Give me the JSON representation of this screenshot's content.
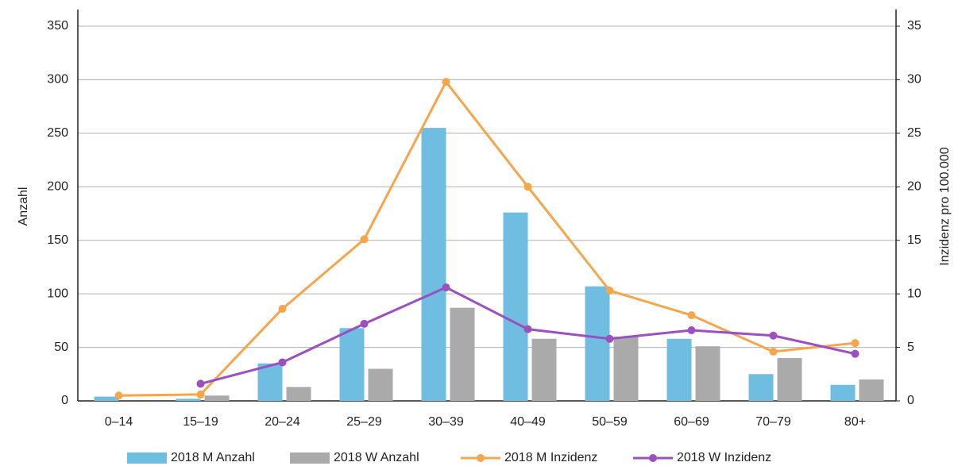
{
  "chart_data": {
    "type": "combo",
    "categories": [
      "0–14",
      "15–19",
      "20–24",
      "25–29",
      "30–39",
      "40–49",
      "50–59",
      "60–69",
      "70–79",
      "80+"
    ],
    "ylabel": "Anzahl",
    "y2label": "Inzidenz pro 100.000",
    "ylim": [
      0,
      350
    ],
    "yticks": [
      0,
      50,
      100,
      150,
      200,
      250,
      300,
      350
    ],
    "y2lim": [
      0,
      35
    ],
    "y2ticks": [
      0,
      5,
      10,
      15,
      20,
      25,
      30,
      35
    ],
    "grid": true,
    "series": [
      {
        "name": "2018 M Anzahl",
        "type": "bar",
        "color": "#6fbde0",
        "values": [
          4,
          2,
          35,
          68,
          255,
          176,
          107,
          58,
          25,
          15
        ]
      },
      {
        "name": "2018 W Anzahl",
        "type": "bar",
        "color": "#aaaaaa",
        "values": [
          0,
          5,
          13,
          30,
          87,
          58,
          60,
          51,
          40,
          20
        ]
      },
      {
        "name": "2018 M Inzidenz",
        "type": "line",
        "axis": "y2",
        "color": "#f7a54a",
        "values": [
          0.5,
          0.6,
          8.6,
          15.1,
          29.8,
          20.0,
          10.3,
          8.0,
          4.6,
          5.4
        ]
      },
      {
        "name": "2018 W Inzidenz",
        "type": "line",
        "axis": "y2",
        "color": "#9b4fc0",
        "values": [
          null,
          1.6,
          3.6,
          7.2,
          10.6,
          6.7,
          5.8,
          6.6,
          6.1,
          4.4
        ]
      }
    ]
  }
}
